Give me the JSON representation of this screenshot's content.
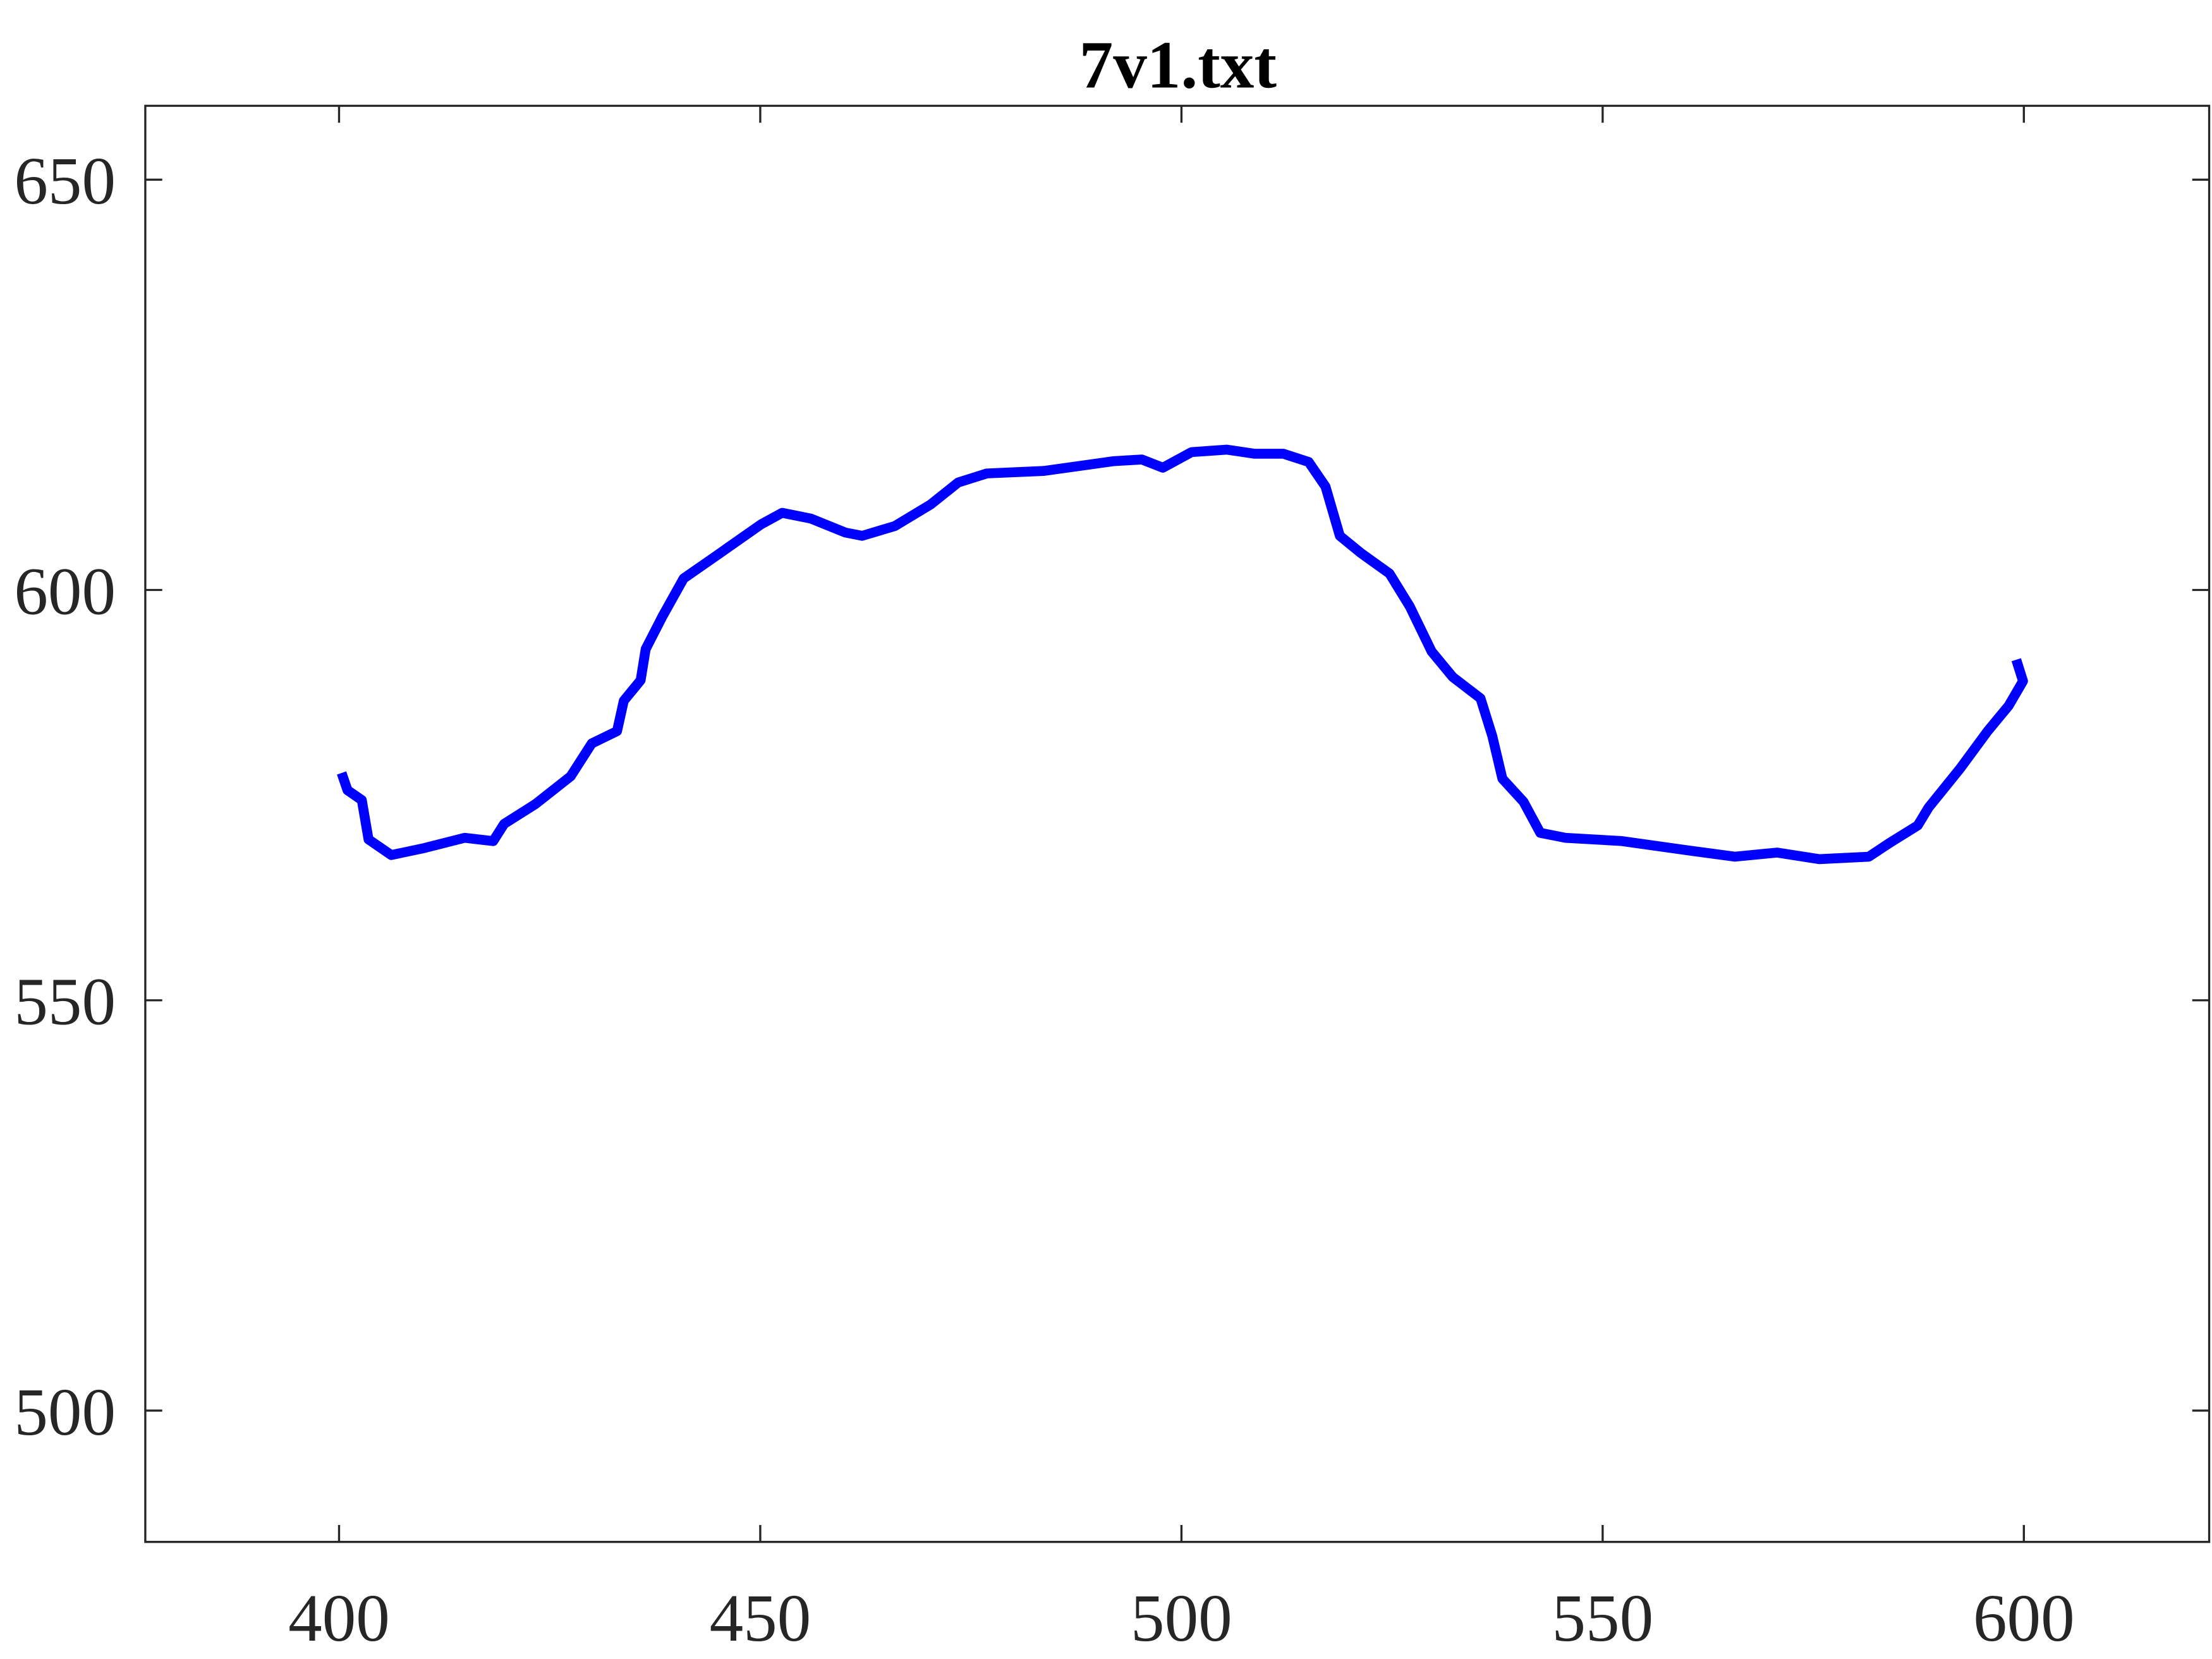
{
  "chart_data": {
    "type": "line",
    "title": "7v1.txt",
    "x": [
      400.3,
      401,
      402.7,
      403.5,
      406.2,
      409.9,
      414.9,
      418.3,
      419.6,
      423.3,
      427.5,
      430,
      433,
      433.8,
      435.8,
      436.4,
      438.4,
      440.9,
      445.1,
      450.1,
      452.6,
      456,
      460.1,
      462.1,
      466,
      470.2,
      473.5,
      476.9,
      483.6,
      492,
      495.3,
      497.8,
      501.2,
      505.4,
      508.7,
      512.1,
      515.1,
      517.1,
      518.8,
      521.3,
      524.7,
      527.1,
      529.7,
      532.2,
      535.5,
      536.9,
      538.1,
      540.6,
      542.6,
      545.6,
      552.3,
      560.6,
      565.7,
      570.7,
      575.7,
      581.6,
      584.1,
      587.4,
      588.7,
      592.4,
      595.7,
      598.2,
      599.9,
      599.1
    ],
    "series": [
      {
        "color": "#0000ff",
        "values": [
          577.7,
          575.6,
          574.4,
          569.6,
          567.7,
          568.5,
          569.8,
          569.4,
          571.5,
          573.9,
          577.3,
          581.3,
          582.8,
          586.5,
          589,
          592.8,
          596.8,
          601.4,
          604.4,
          608,
          609.4,
          608.7,
          607,
          606.6,
          607.8,
          610.4,
          613.1,
          614.2,
          614.5,
          615.7,
          615.9,
          614.9,
          616.8,
          617.1,
          616.6,
          616.6,
          615.6,
          612.6,
          606.6,
          604.5,
          602,
          598,
          592.5,
          589.4,
          586.8,
          582.2,
          577,
          574.2,
          570.4,
          569.8,
          569.4,
          568.2,
          567.5,
          568,
          567.2,
          567.5,
          569.2,
          571.3,
          573.5,
          578.2,
          582.8,
          585.9,
          588.9,
          591.5
        ]
      }
    ],
    "xlim": [
      377,
      622
    ],
    "xticks": [
      400,
      450,
      500,
      550,
      600
    ],
    "ylim": [
      484,
      659
    ],
    "yticks": [
      500,
      550,
      600,
      650
    ],
    "grid": false
  }
}
